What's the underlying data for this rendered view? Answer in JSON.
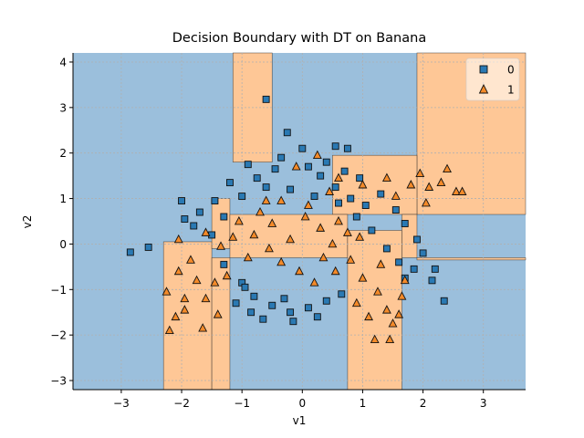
{
  "chart_data": {
    "type": "scatter",
    "title": "Decision Boundary with DT on Banana",
    "xlabel": "v1",
    "ylabel": "v2",
    "xlim": [
      -3.8,
      3.7
    ],
    "ylim": [
      -3.2,
      4.2
    ],
    "xticks": [
      -3,
      -2,
      -1,
      0,
      1,
      2,
      3
    ],
    "yticks": [
      -3,
      -2,
      -1,
      0,
      1,
      2,
      3,
      4
    ],
    "grid": true,
    "legend_position": "top-right",
    "colors": {
      "region_0": "#9bbfdc",
      "region_1": "#fec796",
      "marker_0": "#2a79b3",
      "marker_1": "#f48a29",
      "edge": "#111111",
      "grid": "#b0b0b0"
    },
    "decision_regions": [
      {
        "class": 1,
        "x": [
          -1.15,
          -0.5
        ],
        "y": [
          1.8,
          4.2
        ]
      },
      {
        "class": 1,
        "x": [
          1.9,
          3.7
        ],
        "y": [
          0.65,
          4.2
        ]
      },
      {
        "class": 1,
        "x": [
          0.5,
          1.9
        ],
        "y": [
          0.65,
          1.95
        ]
      },
      {
        "class": 1,
        "x": [
          -2.3,
          -1.5
        ],
        "y": [
          -3.2,
          0.05
        ]
      },
      {
        "class": 1,
        "x": [
          -1.5,
          -1.2
        ],
        "y": [
          -3.2,
          -0.3
        ]
      },
      {
        "class": 1,
        "x": [
          -1.5,
          -1.2
        ],
        "y": [
          -0.1,
          1.0
        ]
      },
      {
        "class": 1,
        "x": [
          -1.2,
          0.75
        ],
        "y": [
          -0.3,
          0.65
        ]
      },
      {
        "class": 1,
        "x": [
          0.75,
          1.65
        ],
        "y": [
          -3.2,
          0.3
        ]
      },
      {
        "class": 1,
        "x": [
          1.65,
          1.9
        ],
        "y": [
          -0.3,
          0.65
        ]
      },
      {
        "class": 1,
        "x": [
          1.9,
          3.7
        ],
        "y": [
          -0.3,
          -0.35
        ]
      }
    ],
    "series": [
      {
        "name": "0",
        "marker": "square",
        "points": [
          [
            -2.85,
            -0.18
          ],
          [
            -2.55,
            -0.07
          ],
          [
            -0.6,
            3.18
          ],
          [
            -0.25,
            2.45
          ],
          [
            0.55,
            2.15
          ],
          [
            0.75,
            2.1
          ],
          [
            2.35,
            -1.25
          ],
          [
            2.2,
            -0.55
          ],
          [
            2.15,
            -0.8
          ],
          [
            -2.0,
            0.95
          ],
          [
            -1.95,
            0.55
          ],
          [
            -1.8,
            0.4
          ],
          [
            -1.5,
            0.2
          ],
          [
            -1.2,
            1.35
          ],
          [
            -0.9,
            1.75
          ],
          [
            -0.45,
            1.65
          ],
          [
            0.1,
            1.7
          ],
          [
            0.3,
            1.5
          ],
          [
            0.55,
            1.25
          ],
          [
            0.95,
            1.45
          ],
          [
            1.3,
            1.1
          ],
          [
            1.55,
            0.75
          ],
          [
            1.7,
            0.45
          ],
          [
            1.9,
            0.1
          ],
          [
            2.0,
            -0.2
          ],
          [
            1.85,
            -0.55
          ],
          [
            1.7,
            -0.75
          ],
          [
            -1.3,
            -0.45
          ],
          [
            -1.0,
            -0.85
          ],
          [
            -0.8,
            -1.15
          ],
          [
            -0.5,
            -1.35
          ],
          [
            -0.2,
            -1.5
          ],
          [
            0.1,
            -1.4
          ],
          [
            0.4,
            -1.25
          ],
          [
            0.65,
            -1.1
          ],
          [
            -0.65,
            -1.65
          ],
          [
            -0.15,
            -1.7
          ],
          [
            0.25,
            -1.6
          ],
          [
            -1.1,
            -1.3
          ],
          [
            -0.85,
            -1.5
          ],
          [
            0.6,
            0.9
          ],
          [
            0.9,
            0.6
          ],
          [
            1.15,
            0.3
          ],
          [
            0.2,
            1.05
          ],
          [
            -0.2,
            1.2
          ],
          [
            -0.6,
            1.25
          ],
          [
            -1.0,
            1.05
          ],
          [
            -1.45,
            0.95
          ],
          [
            -1.7,
            0.7
          ],
          [
            1.4,
            -0.1
          ],
          [
            1.6,
            -0.4
          ],
          [
            0.8,
            1.0
          ],
          [
            1.05,
            0.85
          ],
          [
            -0.35,
            1.9
          ],
          [
            0.0,
            2.1
          ],
          [
            0.4,
            1.8
          ],
          [
            0.7,
            1.6
          ],
          [
            -0.75,
            1.45
          ],
          [
            -1.3,
            0.6
          ],
          [
            -0.95,
            -0.95
          ],
          [
            -0.3,
            -1.2
          ]
        ]
      },
      {
        "name": "1",
        "marker": "triangle",
        "points": [
          [
            -2.2,
            -1.9
          ],
          [
            -2.05,
            -0.6
          ],
          [
            -1.85,
            -0.35
          ],
          [
            -1.6,
            -1.2
          ],
          [
            -1.4,
            -1.55
          ],
          [
            -1.65,
            -1.85
          ],
          [
            -1.95,
            -1.45
          ],
          [
            -2.25,
            -1.05
          ],
          [
            -2.05,
            0.1
          ],
          [
            -1.6,
            0.25
          ],
          [
            -1.35,
            -0.05
          ],
          [
            -1.05,
            0.5
          ],
          [
            -0.7,
            0.7
          ],
          [
            -0.35,
            0.95
          ],
          [
            0.05,
            0.6
          ],
          [
            0.3,
            0.35
          ],
          [
            -0.2,
            0.1
          ],
          [
            -0.55,
            -0.1
          ],
          [
            -0.9,
            -0.3
          ],
          [
            0.5,
            0.0
          ],
          [
            0.8,
            -0.35
          ],
          [
            1.0,
            -0.75
          ],
          [
            1.25,
            -1.05
          ],
          [
            1.4,
            -1.45
          ],
          [
            1.5,
            -1.75
          ],
          [
            1.2,
            -2.1
          ],
          [
            1.45,
            -2.1
          ],
          [
            1.65,
            -1.15
          ],
          [
            1.7,
            -0.8
          ],
          [
            1.1,
            -1.6
          ],
          [
            0.9,
            -1.3
          ],
          [
            -0.1,
            1.7
          ],
          [
            0.25,
            1.95
          ],
          [
            0.6,
            1.45
          ],
          [
            1.0,
            1.3
          ],
          [
            1.4,
            1.45
          ],
          [
            1.8,
            1.3
          ],
          [
            2.1,
            1.25
          ],
          [
            2.3,
            1.35
          ],
          [
            2.55,
            1.15
          ],
          [
            2.65,
            1.15
          ],
          [
            2.4,
            1.65
          ],
          [
            1.95,
            1.55
          ],
          [
            0.45,
            1.15
          ],
          [
            0.1,
            0.85
          ],
          [
            -0.5,
            0.45
          ],
          [
            -0.8,
            0.2
          ],
          [
            -1.15,
            0.15
          ],
          [
            0.6,
            0.5
          ],
          [
            0.95,
            0.15
          ],
          [
            -0.35,
            -0.4
          ],
          [
            -0.05,
            -0.6
          ],
          [
            0.2,
            -0.85
          ],
          [
            0.55,
            -0.6
          ],
          [
            -1.25,
            -0.7
          ],
          [
            -1.75,
            -0.8
          ],
          [
            0.75,
            0.25
          ],
          [
            -0.6,
            0.95
          ],
          [
            1.55,
            1.05
          ],
          [
            2.05,
            0.9
          ],
          [
            -1.95,
            -1.2
          ],
          [
            -1.45,
            -0.85
          ],
          [
            -2.1,
            -1.6
          ],
          [
            1.3,
            -0.45
          ],
          [
            1.6,
            -1.55
          ],
          [
            0.35,
            -0.3
          ]
        ]
      }
    ]
  }
}
